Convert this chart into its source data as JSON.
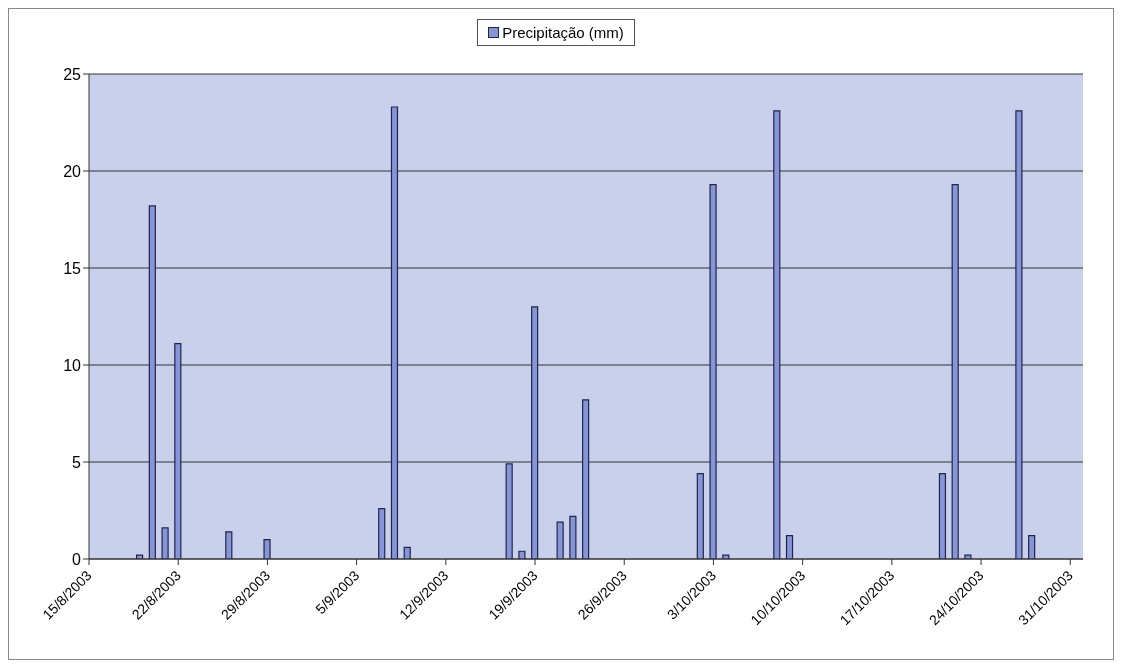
{
  "chart_data": {
    "type": "bar",
    "x": [
      "2003-08-19",
      "2003-08-20",
      "2003-08-21",
      "2003-08-22",
      "2003-08-26",
      "2003-08-29",
      "2003-09-07",
      "2003-09-08",
      "2003-09-09",
      "2003-09-17",
      "2003-09-18",
      "2003-09-19",
      "2003-09-21",
      "2003-09-22",
      "2003-09-23",
      "2003-10-02",
      "2003-10-03",
      "2003-10-04",
      "2003-10-08",
      "2003-10-09",
      "2003-10-21",
      "2003-10-22",
      "2003-10-23",
      "2003-10-27",
      "2003-10-28"
    ],
    "series": [
      {
        "name": "Precipitação (mm)",
        "color": "#8595d8",
        "values": [
          0.2,
          18.2,
          1.6,
          11.1,
          1.4,
          1.0,
          2.6,
          23.3,
          0.6,
          4.9,
          0.4,
          13.0,
          1.9,
          2.2,
          8.2,
          4.4,
          19.3,
          0.2,
          23.1,
          1.2,
          4.4,
          19.3,
          0.2,
          23.1,
          1.2
        ]
      }
    ],
    "xlim": [
      "2003-08-15",
      "2003-11-01"
    ],
    "xticks": [
      {
        "value": "2003-08-15",
        "label": "15/8/2003"
      },
      {
        "value": "2003-08-22",
        "label": "22/8/2003"
      },
      {
        "value": "2003-08-29",
        "label": "29/8/2003"
      },
      {
        "value": "2003-09-05",
        "label": "5/9/2003"
      },
      {
        "value": "2003-09-12",
        "label": "12/9/2003"
      },
      {
        "value": "2003-09-19",
        "label": "19/9/2003"
      },
      {
        "value": "2003-09-26",
        "label": "26/9/2003"
      },
      {
        "value": "2003-10-03",
        "label": "3/10/2003"
      },
      {
        "value": "2003-10-10",
        "label": "10/10/2003"
      },
      {
        "value": "2003-10-17",
        "label": "17/10/2003"
      },
      {
        "value": "2003-10-24",
        "label": "24/10/2003"
      },
      {
        "value": "2003-10-31",
        "label": "31/10/2003"
      }
    ],
    "ylim": [
      0,
      25
    ],
    "yticks": [
      0,
      5,
      10,
      15,
      20,
      25
    ],
    "grid": "y",
    "legend": "top"
  }
}
